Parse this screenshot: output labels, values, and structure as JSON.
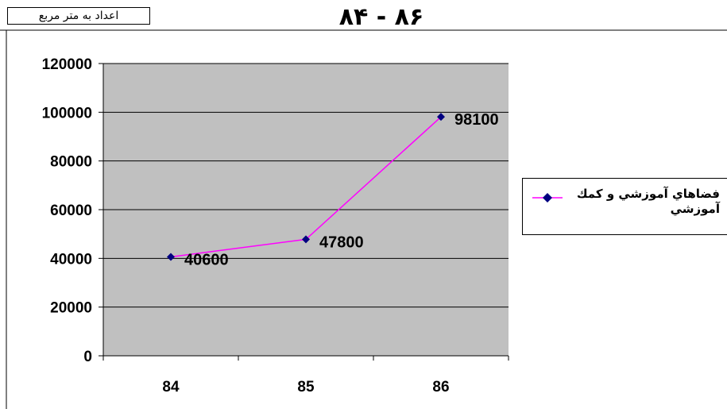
{
  "unit_label": "اعداد به متر مربع",
  "title": "۸۴ - ۸۶",
  "chart_data": {
    "type": "line",
    "title": "۸۴ - ۸۶",
    "categories": [
      "84",
      "85",
      "86"
    ],
    "series": [
      {
        "name": "فضاهاي آموزشي و كمك آموزشي",
        "values": [
          40600,
          47800,
          98100
        ],
        "data_labels": [
          "40600",
          "47800",
          "98100"
        ],
        "color": "#ff00ff",
        "marker_color": "#000080"
      }
    ],
    "ylim": [
      0,
      120000
    ],
    "yticks": [
      "0",
      "20000",
      "40000",
      "60000",
      "80000",
      "100000",
      "120000"
    ],
    "grid": true,
    "plot_background": "#c0c0c0",
    "legend_position": "right"
  }
}
